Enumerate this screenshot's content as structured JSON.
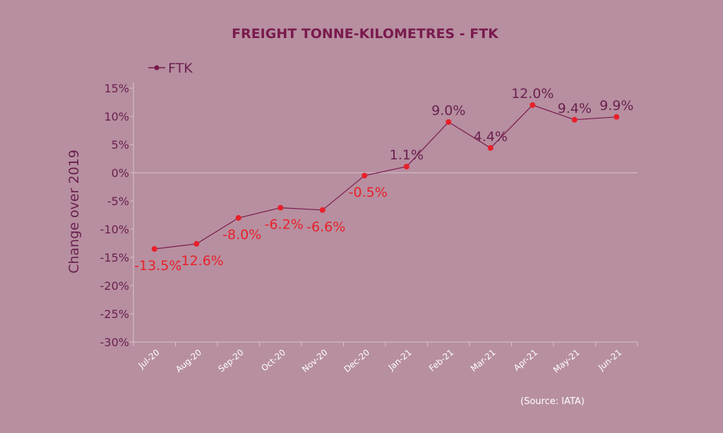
{
  "chart_data": {
    "type": "line",
    "title": "FREIGHT TONNE-KILOMETRES - FTK",
    "ylabel": "Change over 2019",
    "xlabel": "",
    "ylim": [
      -30,
      15
    ],
    "yticks": [
      15,
      10,
      5,
      0,
      -5,
      -10,
      -15,
      -20,
      -25,
      -30
    ],
    "ytick_labels": [
      "15%",
      "10%",
      "5%",
      "0%",
      "-5%",
      "-10%",
      "-15%",
      "-20%",
      "-25%",
      "-30%"
    ],
    "categories": [
      "Jul-20",
      "Aug-20",
      "Sep-20",
      "Oct-20",
      "Nov-20",
      "Dec-20",
      "Jan-21",
      "Feb-21",
      "Mar-21",
      "Apr-21",
      "May-21",
      "Jun-21"
    ],
    "series": [
      {
        "name": "FTK",
        "values": [
          -13.5,
          -12.6,
          -8.0,
          -6.2,
          -6.6,
          -0.5,
          1.1,
          9.0,
          4.4,
          12.0,
          9.4,
          9.9
        ],
        "data_labels": [
          "-13.5%",
          "-12.6%",
          "-8.0%",
          "-6.2%",
          "-6.6%",
          "-0.5%",
          "1.1%",
          "9.0%",
          "4.4%",
          "12.0%",
          "9.4%",
          "9.9%"
        ]
      }
    ],
    "legend": "top-left",
    "grid": false,
    "colors": {
      "line": "#7a1a4e",
      "marker": "#e8202a",
      "negative_label": "#e8202a",
      "positive_label": "#6b2050",
      "axis": "#d9c3cd",
      "background": "#b78fa0"
    }
  },
  "source": "(Source: IATA)"
}
